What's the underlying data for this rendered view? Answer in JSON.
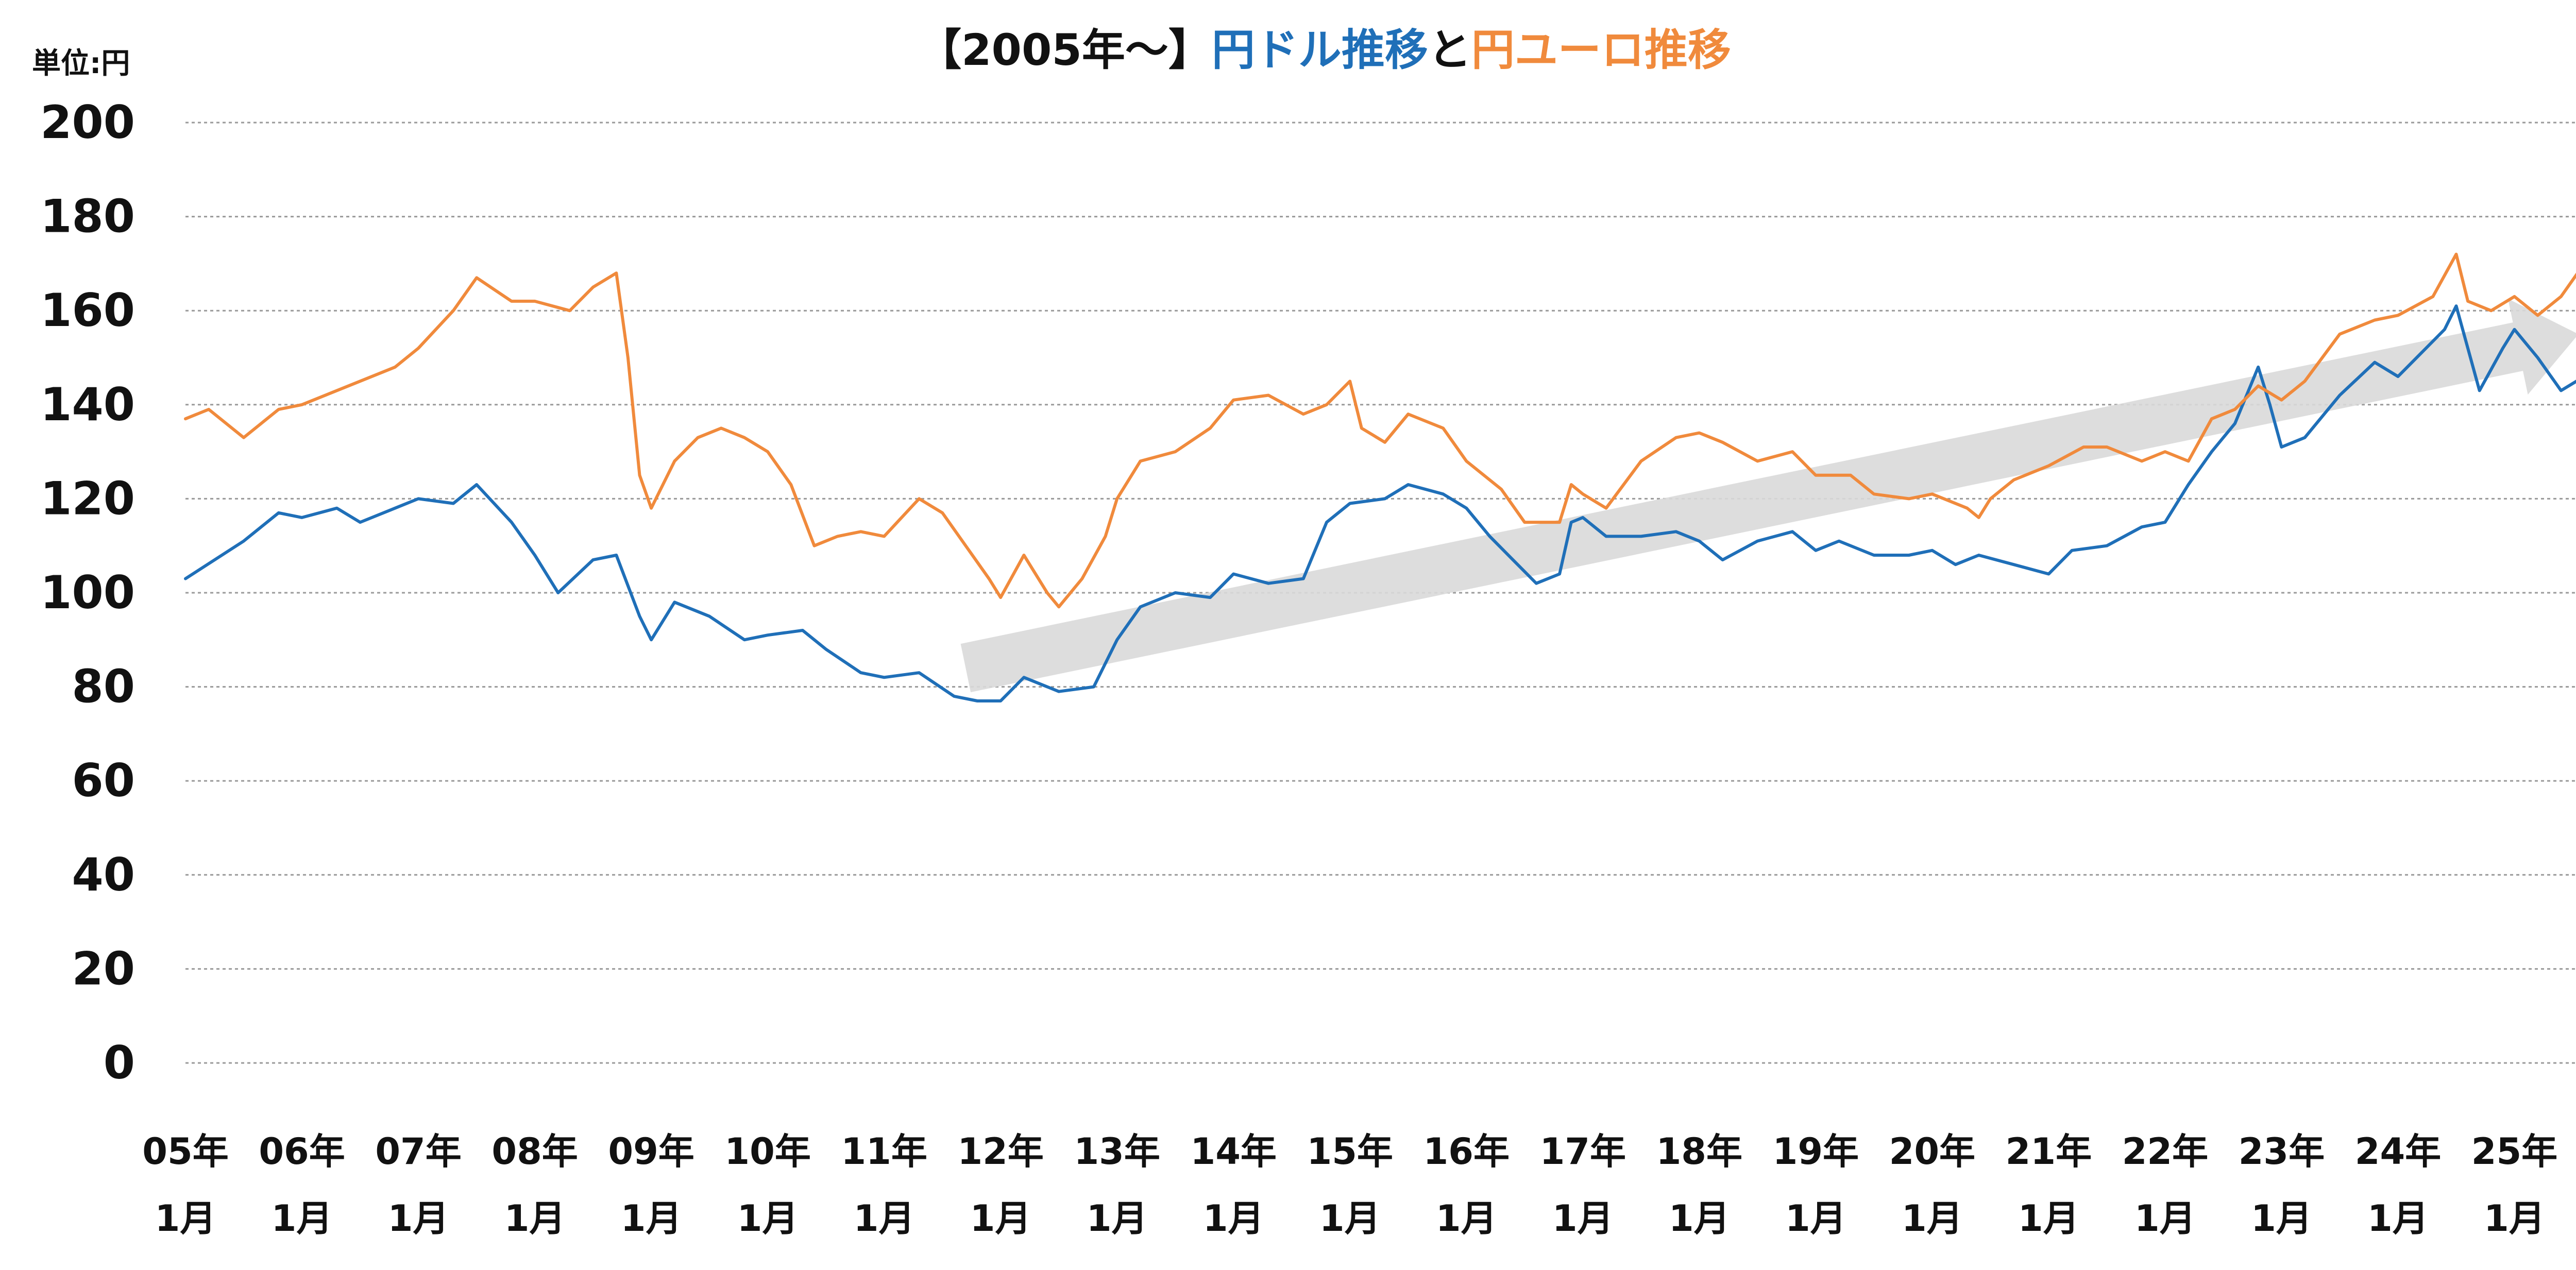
{
  "title": {
    "prefix": "【2005年～】",
    "usd_part": "円ドル推移",
    "joiner": "と",
    "eur_part": "円ユーロ推移"
  },
  "unit_label": "単位:円",
  "colors": {
    "usd": "#1f6fb8",
    "eur": "#f08a3c",
    "grid": "#9a9a9a",
    "arrow": "#d9d9d9"
  },
  "chart_data": {
    "type": "line",
    "title": "【2005年～】円ドル推移と円ユーロ推移",
    "ylabel": "単位:円",
    "ylim": [
      0,
      200
    ],
    "yticks": [
      0,
      20,
      40,
      60,
      80,
      100,
      120,
      140,
      160,
      180,
      200
    ],
    "xlim": [
      2005.0,
      2025.75
    ],
    "grid": true,
    "xticks": [
      {
        "year": 2005,
        "label1": "05年",
        "label2": "1月"
      },
      {
        "year": 2006,
        "label1": "06年",
        "label2": "1月"
      },
      {
        "year": 2007,
        "label1": "07年",
        "label2": "1月"
      },
      {
        "year": 2008,
        "label1": "08年",
        "label2": "1月"
      },
      {
        "year": 2009,
        "label1": "09年",
        "label2": "1月"
      },
      {
        "year": 2010,
        "label1": "10年",
        "label2": "1月"
      },
      {
        "year": 2011,
        "label1": "11年",
        "label2": "1月"
      },
      {
        "year": 2012,
        "label1": "12年",
        "label2": "1月"
      },
      {
        "year": 2013,
        "label1": "13年",
        "label2": "1月"
      },
      {
        "year": 2014,
        "label1": "14年",
        "label2": "1月"
      },
      {
        "year": 2015,
        "label1": "15年",
        "label2": "1月"
      },
      {
        "year": 2016,
        "label1": "16年",
        "label2": "1月"
      },
      {
        "year": 2017,
        "label1": "17年",
        "label2": "1月"
      },
      {
        "year": 2018,
        "label1": "18年",
        "label2": "1月"
      },
      {
        "year": 2019,
        "label1": "19年",
        "label2": "1月"
      },
      {
        "year": 2020,
        "label1": "20年",
        "label2": "1月"
      },
      {
        "year": 2021,
        "label1": "21年",
        "label2": "1月"
      },
      {
        "year": 2022,
        "label1": "22年",
        "label2": "1月"
      },
      {
        "year": 2023,
        "label1": "23年",
        "label2": "1月"
      },
      {
        "year": 2024,
        "label1": "24年",
        "label2": "1月"
      },
      {
        "year": 2025,
        "label1": "25年",
        "label2": "1月"
      }
    ],
    "series": [
      {
        "key": "usd",
        "points": [
          [
            2005.0,
            103
          ],
          [
            2005.5,
            111
          ],
          [
            2005.8,
            117
          ],
          [
            2006.0,
            116
          ],
          [
            2006.3,
            118
          ],
          [
            2006.5,
            115
          ],
          [
            2006.8,
            118
          ],
          [
            2007.0,
            120
          ],
          [
            2007.3,
            119
          ],
          [
            2007.5,
            123
          ],
          [
            2007.8,
            115
          ],
          [
            2008.0,
            108
          ],
          [
            2008.2,
            100
          ],
          [
            2008.5,
            107
          ],
          [
            2008.7,
            108
          ],
          [
            2008.9,
            95
          ],
          [
            2009.0,
            90
          ],
          [
            2009.2,
            98
          ],
          [
            2009.5,
            95
          ],
          [
            2009.8,
            90
          ],
          [
            2010.0,
            91
          ],
          [
            2010.3,
            92
          ],
          [
            2010.5,
            88
          ],
          [
            2010.8,
            83
          ],
          [
            2011.0,
            82
          ],
          [
            2011.3,
            83
          ],
          [
            2011.6,
            78
          ],
          [
            2011.8,
            77
          ],
          [
            2012.0,
            77
          ],
          [
            2012.2,
            82
          ],
          [
            2012.5,
            79
          ],
          [
            2012.8,
            80
          ],
          [
            2013.0,
            90
          ],
          [
            2013.2,
            97
          ],
          [
            2013.5,
            100
          ],
          [
            2013.8,
            99
          ],
          [
            2014.0,
            104
          ],
          [
            2014.3,
            102
          ],
          [
            2014.6,
            103
          ],
          [
            2014.8,
            115
          ],
          [
            2015.0,
            119
          ],
          [
            2015.3,
            120
          ],
          [
            2015.5,
            123
          ],
          [
            2015.8,
            121
          ],
          [
            2016.0,
            118
          ],
          [
            2016.2,
            112
          ],
          [
            2016.4,
            107
          ],
          [
            2016.6,
            102
          ],
          [
            2016.8,
            104
          ],
          [
            2016.9,
            115
          ],
          [
            2017.0,
            116
          ],
          [
            2017.2,
            112
          ],
          [
            2017.5,
            112
          ],
          [
            2017.8,
            113
          ],
          [
            2018.0,
            111
          ],
          [
            2018.2,
            107
          ],
          [
            2018.5,
            111
          ],
          [
            2018.8,
            113
          ],
          [
            2019.0,
            109
          ],
          [
            2019.2,
            111
          ],
          [
            2019.5,
            108
          ],
          [
            2019.8,
            108
          ],
          [
            2020.0,
            109
          ],
          [
            2020.2,
            106
          ],
          [
            2020.4,
            108
          ],
          [
            2020.7,
            106
          ],
          [
            2021.0,
            104
          ],
          [
            2021.2,
            109
          ],
          [
            2021.5,
            110
          ],
          [
            2021.8,
            114
          ],
          [
            2022.0,
            115
          ],
          [
            2022.2,
            123
          ],
          [
            2022.4,
            130
          ],
          [
            2022.6,
            136
          ],
          [
            2022.8,
            148
          ],
          [
            2022.9,
            140
          ],
          [
            2023.0,
            131
          ],
          [
            2023.2,
            133
          ],
          [
            2023.5,
            142
          ],
          [
            2023.8,
            149
          ],
          [
            2024.0,
            146
          ],
          [
            2024.2,
            151
          ],
          [
            2024.4,
            156
          ],
          [
            2024.5,
            161
          ],
          [
            2024.7,
            143
          ],
          [
            2024.9,
            152
          ],
          [
            2025.0,
            156
          ],
          [
            2025.2,
            150
          ],
          [
            2025.4,
            143
          ],
          [
            2025.6,
            146
          ],
          [
            2025.75,
            148
          ]
        ]
      },
      {
        "key": "eur",
        "points": [
          [
            2005.0,
            137
          ],
          [
            2005.2,
            139
          ],
          [
            2005.5,
            133
          ],
          [
            2005.8,
            139
          ],
          [
            2006.0,
            140
          ],
          [
            2006.5,
            145
          ],
          [
            2006.8,
            148
          ],
          [
            2007.0,
            152
          ],
          [
            2007.3,
            160
          ],
          [
            2007.5,
            167
          ],
          [
            2007.8,
            162
          ],
          [
            2008.0,
            162
          ],
          [
            2008.3,
            160
          ],
          [
            2008.5,
            165
          ],
          [
            2008.7,
            168
          ],
          [
            2008.8,
            150
          ],
          [
            2008.9,
            125
          ],
          [
            2009.0,
            118
          ],
          [
            2009.2,
            128
          ],
          [
            2009.4,
            133
          ],
          [
            2009.6,
            135
          ],
          [
            2009.8,
            133
          ],
          [
            2010.0,
            130
          ],
          [
            2010.2,
            123
          ],
          [
            2010.4,
            110
          ],
          [
            2010.6,
            112
          ],
          [
            2010.8,
            113
          ],
          [
            2011.0,
            112
          ],
          [
            2011.3,
            120
          ],
          [
            2011.5,
            117
          ],
          [
            2011.7,
            110
          ],
          [
            2011.9,
            103
          ],
          [
            2012.0,
            99
          ],
          [
            2012.2,
            108
          ],
          [
            2012.4,
            100
          ],
          [
            2012.5,
            97
          ],
          [
            2012.7,
            103
          ],
          [
            2012.9,
            112
          ],
          [
            2013.0,
            120
          ],
          [
            2013.2,
            128
          ],
          [
            2013.5,
            130
          ],
          [
            2013.8,
            135
          ],
          [
            2014.0,
            141
          ],
          [
            2014.3,
            142
          ],
          [
            2014.6,
            138
          ],
          [
            2014.8,
            140
          ],
          [
            2015.0,
            145
          ],
          [
            2015.1,
            135
          ],
          [
            2015.3,
            132
          ],
          [
            2015.5,
            138
          ],
          [
            2015.8,
            135
          ],
          [
            2016.0,
            128
          ],
          [
            2016.3,
            122
          ],
          [
            2016.5,
            115
          ],
          [
            2016.8,
            115
          ],
          [
            2016.9,
            123
          ],
          [
            2017.0,
            121
          ],
          [
            2017.2,
            118
          ],
          [
            2017.5,
            128
          ],
          [
            2017.8,
            133
          ],
          [
            2018.0,
            134
          ],
          [
            2018.2,
            132
          ],
          [
            2018.5,
            128
          ],
          [
            2018.8,
            130
          ],
          [
            2019.0,
            125
          ],
          [
            2019.3,
            125
          ],
          [
            2019.5,
            121
          ],
          [
            2019.8,
            120
          ],
          [
            2020.0,
            121
          ],
          [
            2020.3,
            118
          ],
          [
            2020.4,
            116
          ],
          [
            2020.5,
            120
          ],
          [
            2020.7,
            124
          ],
          [
            2021.0,
            127
          ],
          [
            2021.3,
            131
          ],
          [
            2021.5,
            131
          ],
          [
            2021.8,
            128
          ],
          [
            2022.0,
            130
          ],
          [
            2022.2,
            128
          ],
          [
            2022.4,
            137
          ],
          [
            2022.6,
            139
          ],
          [
            2022.8,
            144
          ],
          [
            2023.0,
            141
          ],
          [
            2023.2,
            145
          ],
          [
            2023.5,
            155
          ],
          [
            2023.8,
            158
          ],
          [
            2024.0,
            159
          ],
          [
            2024.3,
            163
          ],
          [
            2024.5,
            172
          ],
          [
            2024.6,
            162
          ],
          [
            2024.8,
            160
          ],
          [
            2025.0,
            163
          ],
          [
            2025.2,
            159
          ],
          [
            2025.4,
            163
          ],
          [
            2025.6,
            170
          ],
          [
            2025.75,
            173
          ]
        ]
      }
    ]
  }
}
